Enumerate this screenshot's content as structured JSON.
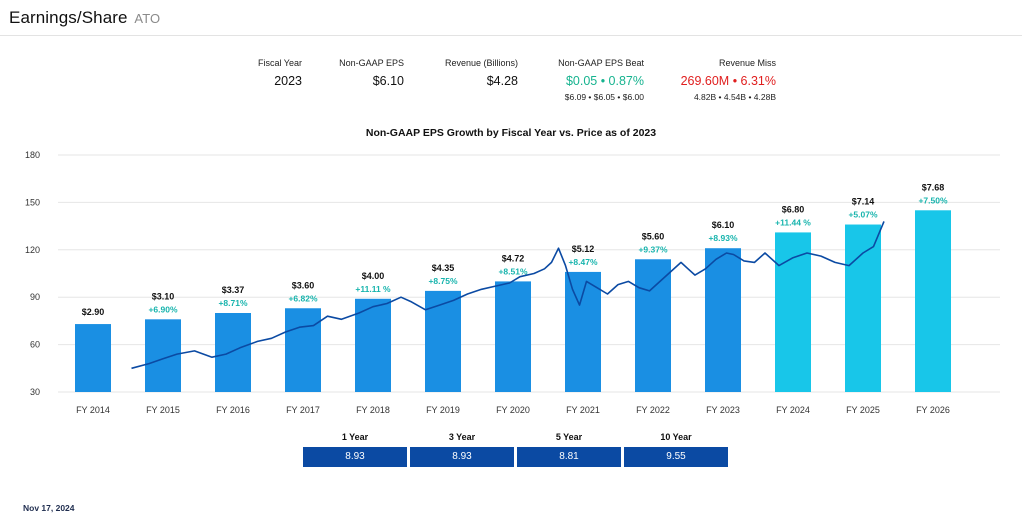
{
  "header": {
    "title": "Earnings/Share",
    "ticker": "ATO"
  },
  "stats": {
    "fiscal_year": {
      "label": "Fiscal Year",
      "value": "2023"
    },
    "eps": {
      "label": "Non-GAAP EPS",
      "value": "$6.10"
    },
    "revenue": {
      "label": "Revenue (Billions)",
      "value": "$4.28"
    },
    "eps_beat": {
      "label": "Non-GAAP EPS Beat",
      "value": "$0.05 • 0.87%",
      "sub": "$6.09 • $6.05 • $6.00",
      "color": "#16b38f"
    },
    "revenue_miss": {
      "label": "Revenue Miss",
      "value": "269.60M • 6.31%",
      "sub": "4.82B • 4.54B • 4.28B",
      "color": "#e01e1e"
    }
  },
  "colors": {
    "actual_bar": "#1a8fe3",
    "estimate_bar": "#18c6e9",
    "price_line": "#0b4aa3",
    "growth_label": "#17b4ad",
    "growth_table": "#0b4aa3"
  },
  "growth": {
    "items": [
      {
        "label": "1 Year",
        "value": "8.93"
      },
      {
        "label": "3 Year",
        "value": "8.93"
      },
      {
        "label": "5 Year",
        "value": "8.81"
      },
      {
        "label": "10 Year",
        "value": "9.55"
      }
    ]
  },
  "date": "Nov 17, 2024",
  "chart_data": {
    "type": "bar",
    "title": "Non-GAAP EPS Growth by Fiscal Year vs. Price as of 2023",
    "categories": [
      "FY 2014",
      "FY 2015",
      "FY 2016",
      "FY 2017",
      "FY 2018",
      "FY 2019",
      "FY 2020",
      "FY 2021",
      "FY 2022",
      "FY 2023",
      "FY 2024",
      "FY 2025",
      "FY 2026"
    ],
    "ylim": [
      30,
      180
    ],
    "yticks": [
      30,
      60,
      90,
      120,
      150,
      180
    ],
    "grid": true,
    "series": [
      {
        "values": [
          73,
          76,
          80,
          83,
          89,
          94,
          100,
          106,
          114,
          121,
          131,
          136,
          145
        ],
        "eps_labels": [
          "$2.90",
          "$3.10",
          "$3.37",
          "$3.60",
          "$4.00",
          "$4.35",
          "$4.72",
          "$5.12",
          "$5.60",
          "$6.10",
          "$6.80",
          "$7.14",
          "$7.68"
        ],
        "growth_labels": [
          "",
          "+6.90%",
          "+8.71%",
          "+6.82%",
          "+11.11 %",
          "+8.75%",
          "+8.51%",
          "+8.47%",
          "+9.37%",
          "+8.93%",
          "+11.44 %",
          "+5.07%",
          "+7.50%"
        ],
        "estimate": [
          false,
          false,
          false,
          false,
          false,
          false,
          false,
          false,
          false,
          false,
          true,
          true,
          true
        ]
      },
      {
        "type": "line",
        "x": [
          2014.55,
          2014.8,
          2015.0,
          2015.2,
          2015.45,
          2015.7,
          2015.9,
          2016.1,
          2016.35,
          2016.55,
          2016.75,
          2016.95,
          2017.15,
          2017.35,
          2017.55,
          2017.8,
          2018.0,
          2018.2,
          2018.4,
          2018.55,
          2018.75,
          2018.95,
          2019.15,
          2019.35,
          2019.55,
          2019.75,
          2019.95,
          2020.1,
          2020.3,
          2020.45,
          2020.55,
          2020.65,
          2020.75,
          2020.85,
          2020.95,
          2021.05,
          2021.2,
          2021.35,
          2021.5,
          2021.65,
          2021.8,
          2021.95,
          2022.1,
          2022.25,
          2022.4,
          2022.5,
          2022.6,
          2022.75,
          2022.9,
          2023.05,
          2023.15,
          2023.3,
          2023.45,
          2023.6,
          2023.8,
          2024.0,
          2024.2,
          2024.4,
          2024.6,
          2024.8,
          2025.0,
          2025.15,
          2025.3
        ],
        "values": [
          45,
          48,
          51,
          54,
          56,
          52,
          54,
          58,
          62,
          64,
          68,
          71,
          72,
          78,
          76,
          80,
          84,
          86,
          90,
          87,
          82,
          85,
          88,
          92,
          95,
          97,
          99,
          103,
          105,
          108,
          112,
          121,
          110,
          95,
          85,
          100,
          96,
          92,
          98,
          100,
          96,
          94,
          100,
          106,
          112,
          108,
          104,
          108,
          114,
          118,
          117,
          113,
          112,
          118,
          110,
          115,
          118,
          116,
          112,
          110,
          118,
          122,
          138
        ]
      }
    ]
  }
}
